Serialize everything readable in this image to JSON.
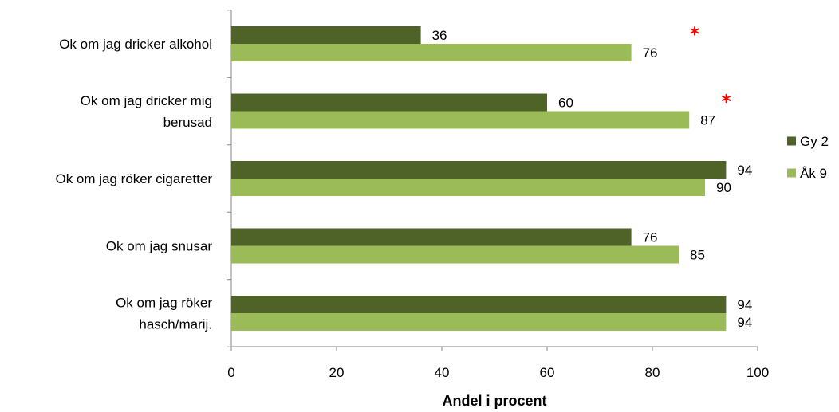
{
  "chart_data": {
    "type": "bar",
    "orientation": "horizontal",
    "categories": [
      [
        "Ok om jag dricker alkohol"
      ],
      [
        "Ok om jag dricker mig",
        "berusad"
      ],
      [
        "Ok om jag röker cigaretter"
      ],
      [
        "Ok om jag snusar"
      ],
      [
        "Ok om jag röker",
        "hasch/marij."
      ]
    ],
    "series": [
      {
        "name": "Gy 2",
        "color": "#4f6228",
        "values": [
          36,
          60,
          94,
          76,
          94
        ]
      },
      {
        "name": "Åk 9",
        "color": "#9bbb59",
        "values": [
          76,
          87,
          90,
          85,
          94
        ]
      }
    ],
    "significance_markers": [
      {
        "category_index": 0,
        "symbol": "*",
        "x_value": 88
      },
      {
        "category_index": 1,
        "symbol": "*",
        "x_value": 94
      }
    ],
    "significance_color": "#ff0000",
    "xlabel": "Andel i procent",
    "ylabel": "",
    "xlim": [
      0,
      100
    ],
    "xticks": [
      0,
      20,
      40,
      60,
      80,
      100
    ],
    "grid": false,
    "legend_position": "right"
  }
}
